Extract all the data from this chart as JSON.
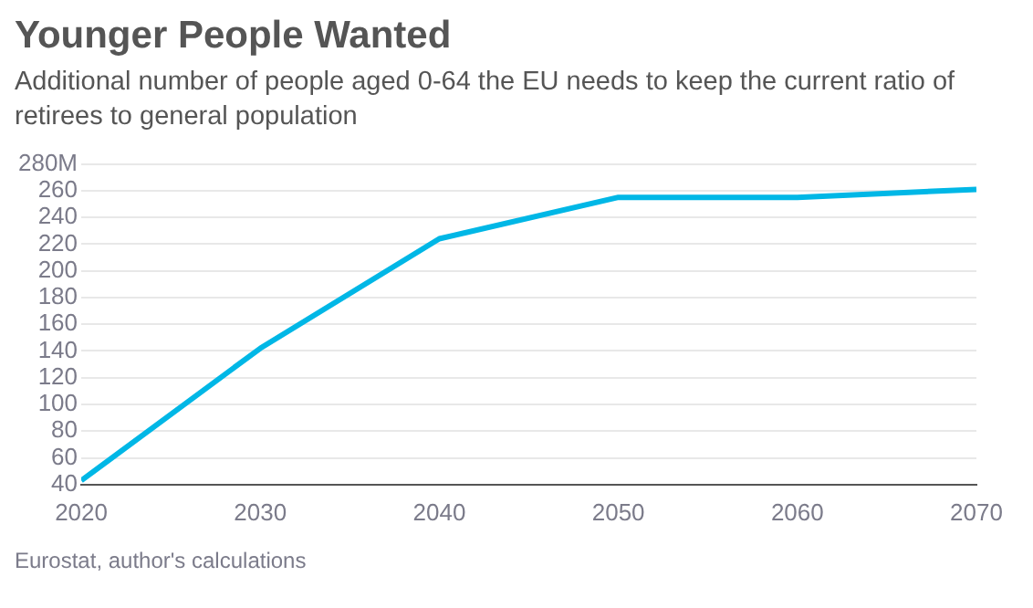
{
  "chart_data": {
    "type": "line",
    "title": "Younger People Wanted",
    "subtitle": "Additional number of people aged 0-64 the EU needs to keep the current ratio of retirees to general population",
    "x": [
      2020,
      2030,
      2040,
      2050,
      2060,
      2070
    ],
    "series": [
      {
        "color": "#00b7e6",
        "values": [
          43,
          142,
          224,
          255,
          255,
          261
        ]
      }
    ],
    "xlim": [
      2020,
      2070
    ],
    "xticks": [
      2020,
      2030,
      2040,
      2050,
      2060,
      2070
    ],
    "ylim": [
      40,
      280
    ],
    "yticks": [
      40,
      60,
      80,
      100,
      120,
      140,
      160,
      180,
      200,
      220,
      240,
      {
        "value": 260,
        "label": "260"
      },
      {
        "value": 280,
        "label": "280M"
      }
    ],
    "grid": "y",
    "legend": false,
    "marker": "none",
    "line_style": "solid",
    "annotations": [
      "Eurostat, author's calculations"
    ]
  }
}
